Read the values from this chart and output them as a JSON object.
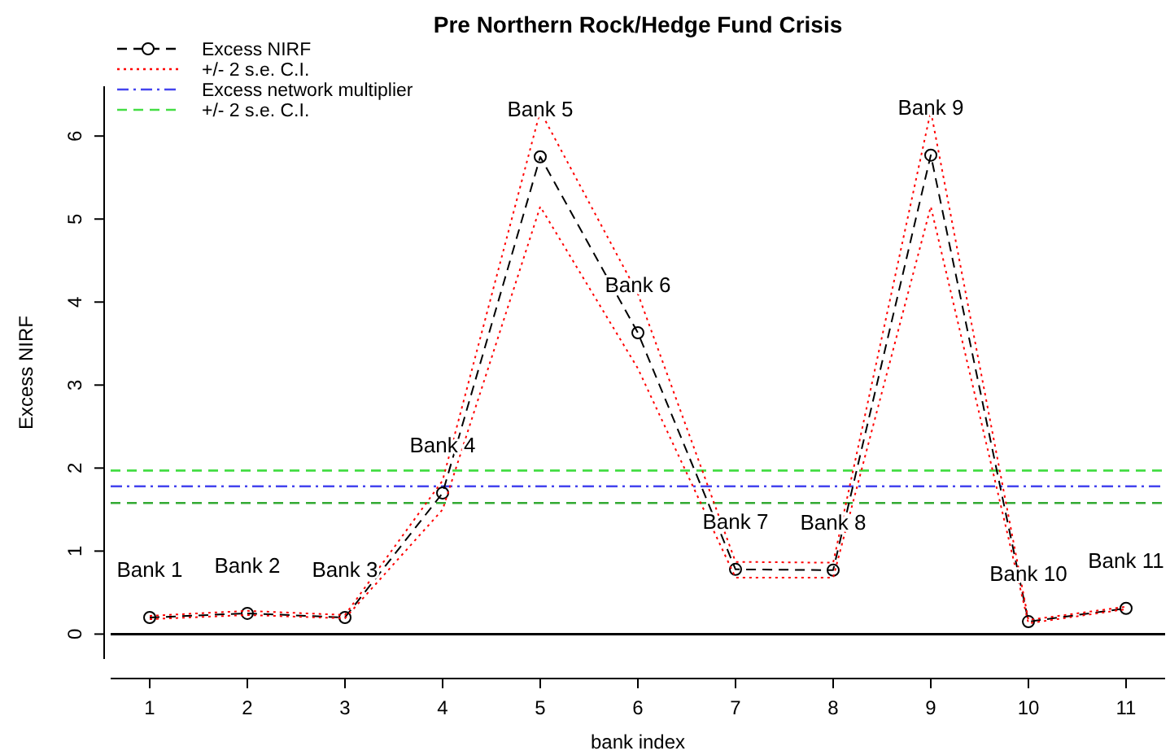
{
  "chart_data": {
    "type": "line",
    "title": "Pre Northern Rock/Hedge Fund Crisis",
    "xlabel": "bank index",
    "ylabel": "Excess NIRF",
    "x": [
      1,
      2,
      3,
      4,
      5,
      6,
      7,
      8,
      9,
      10,
      11
    ],
    "series": [
      {
        "name": "Excess NIRF",
        "color": "#000000",
        "line_style": "dashed",
        "marker": "circle",
        "values": [
          0.2,
          0.25,
          0.2,
          1.7,
          5.75,
          3.63,
          0.78,
          0.77,
          5.77,
          0.15,
          0.31
        ]
      },
      {
        "name": "+/- 2 s.e. C.I.",
        "color": "#ff0000",
        "line_style": "dotted",
        "marker": "none",
        "values": [
          0.22,
          0.28,
          0.23,
          1.85,
          6.3,
          4.1,
          0.87,
          0.86,
          6.3,
          0.17,
          0.33
        ]
      },
      {
        "color": "#ff0000",
        "line_style": "dotted",
        "marker": "none",
        "values": [
          0.18,
          0.23,
          0.19,
          1.5,
          5.15,
          3.2,
          0.68,
          0.68,
          5.15,
          0.13,
          0.3
        ]
      }
    ],
    "ref_lines": [
      {
        "axis": "y",
        "value": 1.78,
        "label": "Excess network multiplier",
        "color": "#4444ee",
        "line_style": "dashdot"
      },
      {
        "axis": "y",
        "value": 1.97,
        "label": "+/- 2 s.e. C.I.",
        "color": "#44dd44",
        "line_style": "dashed"
      },
      {
        "axis": "y",
        "value": 1.58,
        "color": "#33aa33",
        "line_style": "dashed"
      },
      {
        "axis": "y",
        "value": 0,
        "color": "#000000",
        "line_style": "solid"
      }
    ],
    "annotations": [
      {
        "text": "Bank 1",
        "x": 1,
        "y": 0.2
      },
      {
        "text": "Bank 2",
        "x": 2,
        "y": 0.25
      },
      {
        "text": "Bank 3",
        "x": 3,
        "y": 0.2
      },
      {
        "text": "Bank 4",
        "x": 4,
        "y": 1.7
      },
      {
        "text": "Bank 5",
        "x": 5,
        "y": 5.75
      },
      {
        "text": "Bank 6",
        "x": 6,
        "y": 3.63
      },
      {
        "text": "Bank 7",
        "x": 7,
        "y": 0.78
      },
      {
        "text": "Bank 8",
        "x": 8,
        "y": 0.77
      },
      {
        "text": "Bank 9",
        "x": 9,
        "y": 5.77
      },
      {
        "text": "Bank 10",
        "x": 10,
        "y": 0.15
      },
      {
        "text": "Bank 11",
        "x": 11,
        "y": 0.31
      }
    ],
    "xlim": [
      0.6,
      11.4
    ],
    "ylim": [
      -0.3,
      6.6
    ],
    "xticks": [
      1,
      2,
      3,
      4,
      5,
      6,
      7,
      8,
      9,
      10,
      11
    ],
    "yticks": [
      0,
      1,
      2,
      3,
      4,
      5,
      6
    ],
    "legend": "top left",
    "grid": false
  }
}
